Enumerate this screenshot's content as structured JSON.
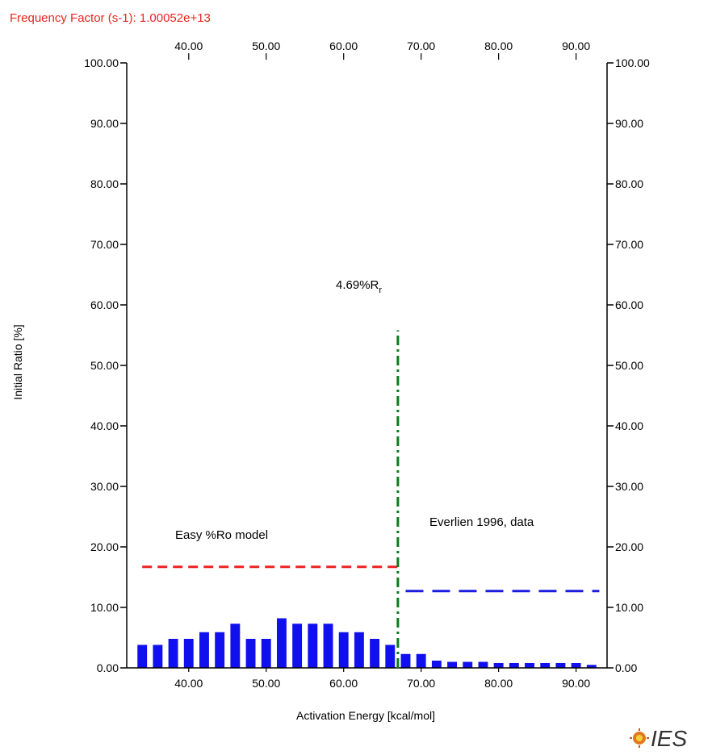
{
  "header": {
    "frequency_factor": "Frequency Factor (s-1): 1.00052e+13",
    "frequency_color": "#e8261f"
  },
  "logo": {
    "text": "IES",
    "icon": "ies-sun-icon"
  },
  "chart_data": {
    "type": "bar",
    "x": [
      34,
      36,
      38,
      40,
      42,
      44,
      46,
      48,
      50,
      52,
      54,
      56,
      58,
      60,
      62,
      64,
      66,
      68,
      70,
      72,
      74,
      76,
      78,
      80,
      82,
      84,
      86,
      88,
      90,
      92
    ],
    "values": [
      3.8,
      3.8,
      4.8,
      4.8,
      5.9,
      5.9,
      7.3,
      4.8,
      4.8,
      8.2,
      7.3,
      7.3,
      7.3,
      5.9,
      5.9,
      4.8,
      3.8,
      2.3,
      2.3,
      1.2,
      1.0,
      1.0,
      1.0,
      0.8,
      0.8,
      0.8,
      0.8,
      0.8,
      0.8,
      0.5
    ],
    "bar_color": "#1010ee",
    "xlim": [
      32,
      94
    ],
    "ylim": [
      0,
      100
    ],
    "xticks": [
      "40.00",
      "50.00",
      "60.00",
      "70.00",
      "80.00",
      "90.00"
    ],
    "xtick_values": [
      40,
      50,
      60,
      70,
      80,
      90
    ],
    "yticks": [
      "0.00",
      "10.00",
      "20.00",
      "30.00",
      "40.00",
      "50.00",
      "60.00",
      "70.00",
      "80.00",
      "90.00",
      "100.00"
    ],
    "ytick_values": [
      0,
      10,
      20,
      30,
      40,
      50,
      60,
      70,
      80,
      90,
      100
    ],
    "xlabel": "Activation Energy [kcal/mol]",
    "ylabel": "Initial Ratio [%]",
    "reference_lines": [
      {
        "label": "Easy %Ro model",
        "x_from": 34,
        "x_to": 67,
        "y": 16.7,
        "color": "#ee2222",
        "style": "dashed"
      },
      {
        "label": "Everlien 1996, data",
        "x_from": 68,
        "x_to": 93,
        "y": 12.7,
        "color": "#1c1ce0",
        "style": "long-dashed"
      },
      {
        "label": "4.69%R",
        "label_subscript": "r",
        "x": 67,
        "y_from": 0,
        "y_to": 55.8,
        "color": "#0a7a1a",
        "style": "dash-dot"
      }
    ]
  }
}
